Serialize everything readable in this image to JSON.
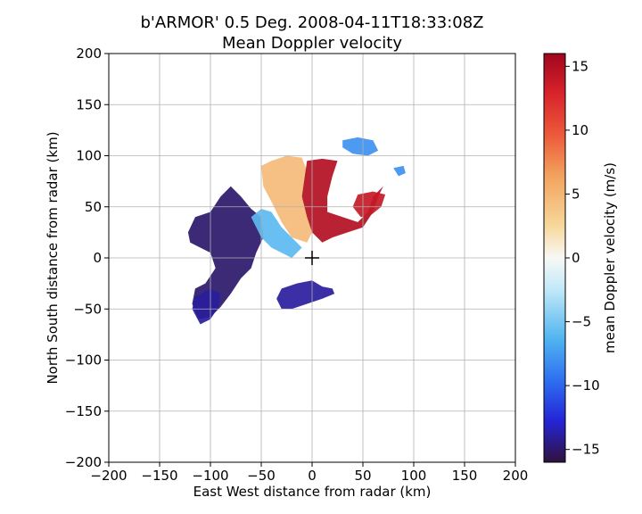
{
  "chart_data": {
    "type": "heatmap",
    "title_line1": "b'ARMOR' 0.5 Deg. 2008-04-11T18:33:08Z",
    "title_line2": "Mean Doppler velocity",
    "xlabel": "East West distance from radar (km)",
    "ylabel": "North South distance from radar (km)",
    "xlim": [
      -200,
      200
    ],
    "ylim": [
      -200,
      200
    ],
    "xticks": [
      -200,
      -150,
      -100,
      -50,
      0,
      50,
      100,
      150,
      200
    ],
    "yticks": [
      -200,
      -150,
      -100,
      -50,
      0,
      50,
      100,
      150,
      200
    ],
    "grid": true,
    "radar_marker": [
      0,
      0
    ],
    "colorbar": {
      "label": "mean Doppler velocity (m/s)",
      "range": [
        -16,
        16
      ],
      "ticks": [
        -15,
        -10,
        -5,
        0,
        5,
        10,
        15
      ],
      "colormap": [
        "#30123b",
        "#2424d6",
        "#2e6ff0",
        "#4fb3f0",
        "#bfe8f8",
        "#f8f8f5",
        "#f7d79a",
        "#f3a35e",
        "#ec5a3a",
        "#d9242b",
        "#a0061e"
      ]
    },
    "echo_regions": [
      {
        "name": "west-outbound",
        "velocity": -15,
        "polygon": [
          [
            -112,
            -60
          ],
          [
            -118,
            -45
          ],
          [
            -115,
            -30
          ],
          [
            -105,
            -25
          ],
          [
            -95,
            -10
          ],
          [
            -100,
            5
          ],
          [
            -120,
            15
          ],
          [
            -122,
            25
          ],
          [
            -115,
            40
          ],
          [
            -100,
            45
          ],
          [
            -90,
            60
          ],
          [
            -80,
            70
          ],
          [
            -70,
            60
          ],
          [
            -60,
            48
          ],
          [
            -50,
            40
          ],
          [
            -48,
            20
          ],
          [
            -55,
            5
          ],
          [
            -60,
            -10
          ],
          [
            -70,
            -20
          ],
          [
            -80,
            -35
          ],
          [
            -90,
            -48
          ],
          [
            -100,
            -58
          ]
        ]
      },
      {
        "name": "southwest-band",
        "velocity": -14,
        "polygon": [
          [
            -110,
            -65
          ],
          [
            -118,
            -50
          ],
          [
            -115,
            -38
          ],
          [
            -100,
            -30
          ],
          [
            -90,
            -35
          ],
          [
            -92,
            -48
          ],
          [
            -100,
            -60
          ]
        ]
      },
      {
        "name": "south-cell",
        "velocity": -14,
        "polygon": [
          [
            -30,
            -50
          ],
          [
            -35,
            -40
          ],
          [
            -30,
            -30
          ],
          [
            -15,
            -25
          ],
          [
            0,
            -22
          ],
          [
            10,
            -28
          ],
          [
            20,
            -30
          ],
          [
            22,
            -35
          ],
          [
            10,
            -40
          ],
          [
            -5,
            -45
          ],
          [
            -20,
            -50
          ]
        ]
      },
      {
        "name": "central-transition",
        "velocity": -6,
        "polygon": [
          [
            -60,
            40
          ],
          [
            -50,
            48
          ],
          [
            -40,
            45
          ],
          [
            -30,
            30
          ],
          [
            -20,
            20
          ],
          [
            -10,
            10
          ],
          [
            -20,
            0
          ],
          [
            -30,
            5
          ],
          [
            -40,
            10
          ],
          [
            -50,
            20
          ]
        ]
      },
      {
        "name": "north-approaching",
        "velocity": 5,
        "polygon": [
          [
            -50,
            90
          ],
          [
            -40,
            95
          ],
          [
            -25,
            100
          ],
          [
            -10,
            98
          ],
          [
            -5,
            85
          ],
          [
            -10,
            60
          ],
          [
            -5,
            40
          ],
          [
            0,
            25
          ],
          [
            -5,
            15
          ],
          [
            -20,
            20
          ],
          [
            -30,
            35
          ],
          [
            -40,
            55
          ],
          [
            -48,
            70
          ]
        ]
      },
      {
        "name": "north-core",
        "velocity": 15,
        "polygon": [
          [
            -5,
            95
          ],
          [
            10,
            97
          ],
          [
            25,
            95
          ],
          [
            20,
            80
          ],
          [
            15,
            60
          ],
          [
            15,
            45
          ],
          [
            30,
            40
          ],
          [
            45,
            35
          ],
          [
            55,
            45
          ],
          [
            60,
            60
          ],
          [
            70,
            70
          ],
          [
            65,
            60
          ],
          [
            60,
            45
          ],
          [
            50,
            30
          ],
          [
            35,
            25
          ],
          [
            20,
            20
          ],
          [
            10,
            15
          ],
          [
            0,
            25
          ],
          [
            -5,
            40
          ],
          [
            -10,
            60
          ]
        ]
      },
      {
        "name": "northeast-cell",
        "velocity": 14,
        "polygon": [
          [
            40,
            50
          ],
          [
            45,
            62
          ],
          [
            60,
            65
          ],
          [
            72,
            62
          ],
          [
            68,
            50
          ],
          [
            58,
            42
          ],
          [
            48,
            40
          ]
        ]
      },
      {
        "name": "far-north-arc",
        "velocity": -8,
        "polygon": [
          [
            30,
            115
          ],
          [
            45,
            118
          ],
          [
            60,
            115
          ],
          [
            65,
            105
          ],
          [
            55,
            100
          ],
          [
            40,
            102
          ],
          [
            30,
            108
          ]
        ]
      },
      {
        "name": "far-northeast-patch",
        "velocity": -8,
        "polygon": [
          [
            80,
            88
          ],
          [
            90,
            90
          ],
          [
            92,
            83
          ],
          [
            85,
            80
          ]
        ]
      }
    ]
  }
}
